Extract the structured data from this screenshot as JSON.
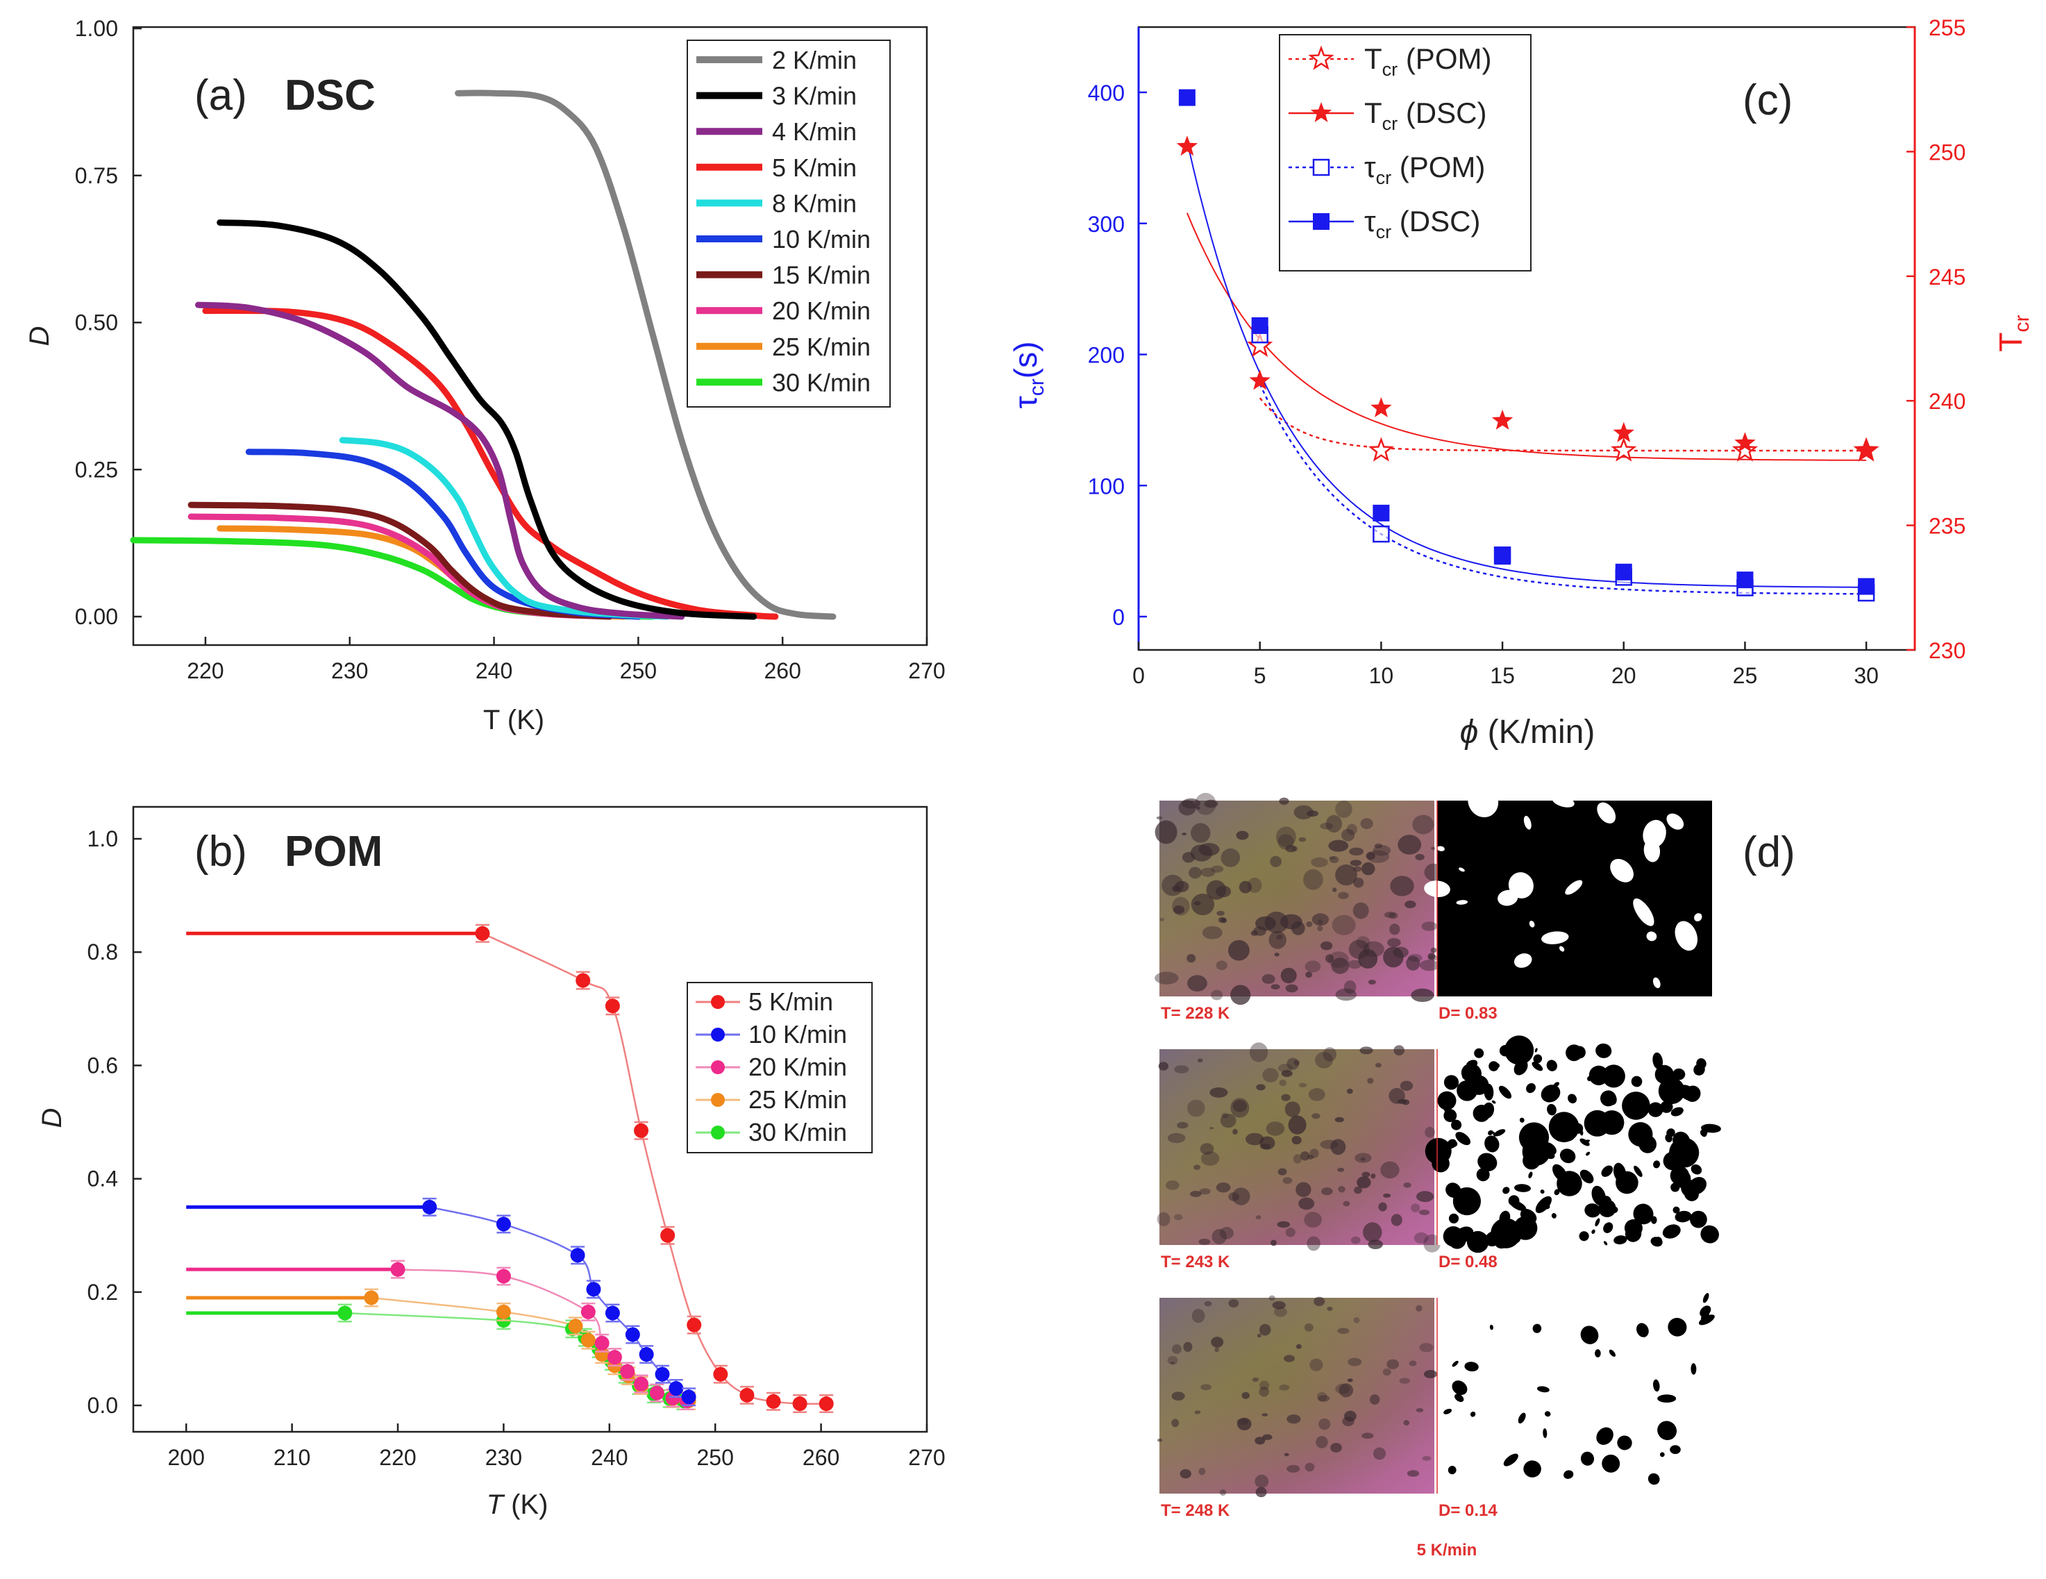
{
  "chart_data": [
    {
      "id": "a",
      "type": "line",
      "panel_label": "(a)",
      "title": "DSC",
      "xlabel": "T (K)",
      "ylabel": "D",
      "xlim": [
        215,
        270
      ],
      "ylim": [
        0,
        1.0
      ],
      "xticks": [
        220,
        230,
        240,
        250,
        260,
        270
      ],
      "yticks": [
        0.0,
        0.25,
        0.5,
        0.75,
        1.0
      ],
      "xtick_labels": [
        "220",
        "230",
        "240",
        "250",
        "260",
        "270"
      ],
      "ytick_labels": [
        "0.00",
        "0.25",
        "0.50",
        "0.75",
        "1.00"
      ],
      "legend_position": "top-right",
      "series": [
        {
          "name": "2 K/min",
          "color": "#808080",
          "x": [
            237.5,
            240,
            243,
            245,
            247,
            249,
            251,
            253,
            255,
            257,
            259,
            261,
            263.5
          ],
          "y": [
            0.89,
            0.89,
            0.885,
            0.86,
            0.8,
            0.66,
            0.48,
            0.3,
            0.16,
            0.07,
            0.02,
            0.004,
            0.0
          ]
        },
        {
          "name": "3 K/min",
          "color": "#000000",
          "x": [
            221,
            225,
            229,
            232,
            235,
            237,
            239,
            240.5,
            241.5,
            242.5,
            244,
            246,
            249,
            253,
            258
          ],
          "y": [
            0.67,
            0.665,
            0.64,
            0.59,
            0.51,
            0.44,
            0.37,
            0.33,
            0.28,
            0.2,
            0.11,
            0.06,
            0.025,
            0.006,
            0.0
          ]
        },
        {
          "name": "4 K/min",
          "color": "#8b2a8b",
          "x": [
            219.5,
            223,
            227,
            231,
            234,
            237,
            239,
            240.3,
            241.2,
            242,
            243.5,
            246,
            249,
            253
          ],
          "y": [
            0.53,
            0.525,
            0.5,
            0.45,
            0.39,
            0.35,
            0.31,
            0.25,
            0.16,
            0.09,
            0.04,
            0.015,
            0.005,
            0.0
          ]
        },
        {
          "name": "5 K/min",
          "color": "#f02020",
          "x": [
            220,
            226,
            230,
            233,
            236,
            238,
            240,
            242,
            244,
            246,
            250,
            254,
            258,
            259.5
          ],
          "y": [
            0.52,
            0.518,
            0.5,
            0.46,
            0.4,
            0.33,
            0.24,
            0.16,
            0.12,
            0.09,
            0.04,
            0.012,
            0.002,
            0.0
          ]
        },
        {
          "name": "8 K/min",
          "color": "#22dddd",
          "x": [
            229.5,
            232,
            234,
            236,
            237.5,
            238.5,
            239.5,
            240.5,
            241.5,
            243,
            246,
            249,
            252
          ],
          "y": [
            0.3,
            0.295,
            0.28,
            0.245,
            0.2,
            0.15,
            0.1,
            0.065,
            0.04,
            0.02,
            0.008,
            0.003,
            0.0
          ]
        },
        {
          "name": "10 K/min",
          "color": "#1a3be0",
          "x": [
            223,
            227,
            231,
            234,
            236.5,
            238,
            239.5,
            241,
            243,
            246,
            250
          ],
          "y": [
            0.28,
            0.278,
            0.265,
            0.23,
            0.17,
            0.11,
            0.06,
            0.035,
            0.018,
            0.006,
            0.0
          ]
        },
        {
          "name": "15 K/min",
          "color": "#7a1a1a",
          "x": [
            219,
            225,
            230,
            233,
            235.5,
            237,
            238.3,
            239.5,
            241,
            244,
            248
          ],
          "y": [
            0.19,
            0.188,
            0.18,
            0.16,
            0.12,
            0.08,
            0.05,
            0.03,
            0.015,
            0.005,
            0.0
          ]
        },
        {
          "name": "20 K/min",
          "color": "#e6338f",
          "x": [
            219,
            225,
            230,
            233,
            235.5,
            237,
            238.3,
            239.5,
            241,
            244,
            248
          ],
          "y": [
            0.17,
            0.168,
            0.16,
            0.14,
            0.105,
            0.07,
            0.043,
            0.026,
            0.013,
            0.004,
            0.0
          ]
        },
        {
          "name": "25 K/min",
          "color": "#f28a1a",
          "x": [
            221,
            226,
            231,
            234,
            236,
            237.5,
            238.7,
            240,
            242,
            245,
            249
          ],
          "y": [
            0.15,
            0.148,
            0.14,
            0.12,
            0.09,
            0.06,
            0.037,
            0.022,
            0.01,
            0.003,
            0.0
          ]
        },
        {
          "name": "30 K/min",
          "color": "#22e022",
          "x": [
            215,
            222,
            228,
            232,
            235,
            237,
            238.5,
            240,
            242,
            246,
            251
          ],
          "y": [
            0.13,
            0.128,
            0.122,
            0.105,
            0.08,
            0.052,
            0.03,
            0.017,
            0.008,
            0.002,
            0.0
          ]
        }
      ]
    },
    {
      "id": "b",
      "type": "scatter",
      "panel_label": "(b)",
      "title": "POM",
      "xlabel": "T (K)",
      "xlabel_italic": "T",
      "xlabel_unit": " (K)",
      "ylabel": "D",
      "xlim": [
        195,
        270
      ],
      "ylim": [
        -0.05,
        1.05
      ],
      "xticks": [
        200,
        210,
        220,
        230,
        240,
        250,
        260,
        270
      ],
      "yticks": [
        0.0,
        0.2,
        0.4,
        0.6,
        0.8,
        1.0
      ],
      "xtick_labels": [
        "200",
        "210",
        "220",
        "230",
        "240",
        "250",
        "260",
        "270"
      ],
      "ytick_labels": [
        "0.0",
        "0.2",
        "0.4",
        "0.6",
        "0.8",
        "1.0"
      ],
      "legend_position": "center-right",
      "series": [
        {
          "name": "5 K/min",
          "color": "#ee1c1c",
          "line_color": "#f08080",
          "plateau_from": 200,
          "x": [
            228,
            237.5,
            240.3,
            243,
            245.5,
            248,
            250.5,
            253,
            255.5,
            258,
            260.5
          ],
          "y": [
            0.833,
            0.75,
            0.705,
            0.485,
            0.3,
            0.142,
            0.055,
            0.018,
            0.007,
            0.003,
            0.003
          ],
          "err": [
            0.015,
            0.015,
            0.015,
            0.015,
            0.015,
            0.015,
            0.015,
            0.015,
            0.015,
            0.015,
            0.015
          ]
        },
        {
          "name": "10 K/min",
          "color": "#1010ee",
          "line_color": "#7070f0",
          "plateau_from": 200,
          "x": [
            223,
            230,
            237,
            238.5,
            240.3,
            242.2,
            243.5,
            245,
            246.3,
            247.5
          ],
          "y": [
            0.35,
            0.32,
            0.265,
            0.205,
            0.163,
            0.125,
            0.09,
            0.055,
            0.03,
            0.015
          ],
          "err": [
            0.015,
            0.015,
            0.015,
            0.015,
            0.015,
            0.015,
            0.015,
            0.015,
            0.015,
            0.015
          ]
        },
        {
          "name": "20 K/min",
          "color": "#ee2a8a",
          "line_color": "#f08ab8",
          "plateau_from": 200,
          "x": [
            220,
            230,
            238,
            239.3,
            240.5,
            241.7,
            243,
            244.5,
            246,
            247.3
          ],
          "y": [
            0.24,
            0.228,
            0.165,
            0.11,
            0.085,
            0.06,
            0.038,
            0.022,
            0.013,
            0.008
          ],
          "err": [
            0.015,
            0.015,
            0.015,
            0.015,
            0.015,
            0.015,
            0.015,
            0.015,
            0.015,
            0.015
          ]
        },
        {
          "name": "25 K/min",
          "color": "#f0881a",
          "line_color": "#f4bc80",
          "plateau_from": 200,
          "x": [
            217.5,
            230,
            236.8,
            238,
            239.3,
            240.5,
            241.8,
            243,
            244.5,
            246,
            247.5
          ],
          "y": [
            0.19,
            0.165,
            0.14,
            0.115,
            0.09,
            0.07,
            0.052,
            0.035,
            0.022,
            0.012,
            0.008
          ],
          "err": [
            0.015,
            0.015,
            0.015,
            0.015,
            0.015,
            0.015,
            0.015,
            0.015,
            0.015,
            0.015,
            0.015
          ]
        },
        {
          "name": "30 K/min",
          "color": "#22dd22",
          "line_color": "#80e880",
          "plateau_from": 200,
          "x": [
            215,
            230,
            236.5,
            237.7,
            239,
            240.2,
            241.5,
            242.8,
            244.2,
            245.7,
            247
          ],
          "y": [
            0.163,
            0.15,
            0.135,
            0.12,
            0.1,
            0.078,
            0.055,
            0.035,
            0.02,
            0.012,
            0.008
          ],
          "err": [
            0.015,
            0.015,
            0.015,
            0.015,
            0.015,
            0.015,
            0.015,
            0.015,
            0.015,
            0.015,
            0.015
          ]
        }
      ]
    },
    {
      "id": "c",
      "type": "scatter",
      "panel_label": "(c)",
      "xlabel": "ϕ (K/min)",
      "xlabel_italic": "ϕ",
      "xlabel_unit": " (K/min)",
      "ylabel_left": "τcr(s)",
      "ylabel_right": "Tcr",
      "xlim": [
        0,
        32
      ],
      "ylim_left": [
        -25,
        450
      ],
      "ylim_right": [
        230,
        255
      ],
      "xticks": [
        0,
        5,
        10,
        15,
        20,
        25,
        30
      ],
      "yticks_left": [
        0,
        100,
        200,
        300,
        400
      ],
      "yticks_right": [
        230,
        235,
        240,
        245,
        250,
        255
      ],
      "xtick_labels": [
        "0",
        "5",
        "10",
        "15",
        "20",
        "25",
        "30"
      ],
      "ytick_labels_left": [
        "0",
        "100",
        "200",
        "300",
        "400"
      ],
      "ytick_labels_right": [
        "230",
        "235",
        "240",
        "245",
        "250",
        "255"
      ],
      "left_axis_color": "#1a1aee",
      "right_axis_color": "#ee1c1c",
      "legend_position": "top-left",
      "series": [
        {
          "name": "Tcr (POM)",
          "label_main": "T",
          "label_sub": "cr",
          "label_rest": " (POM)",
          "axis": "right",
          "marker": "star-open",
          "line": "dotted",
          "color": "#ee1c1c",
          "x": [
            5,
            10,
            20,
            25,
            30
          ],
          "y": [
            242.2,
            238.0,
            238.0,
            238.0,
            238.0
          ]
        },
        {
          "name": "Tcr (DSC)",
          "label_main": "T",
          "label_sub": "cr",
          "label_rest": " (DSC)",
          "axis": "right",
          "marker": "star-filled",
          "line": "solid",
          "color": "#ee1c1c",
          "x": [
            2,
            5,
            10,
            15,
            20,
            25,
            30
          ],
          "y": [
            250.2,
            240.8,
            239.7,
            239.2,
            238.7,
            238.3,
            238.0
          ]
        },
        {
          "name": "τcr (POM)",
          "label_main": "τ",
          "label_sub": "cr",
          "label_rest": " (POM)",
          "axis": "left",
          "marker": "square-open",
          "line": "dotted",
          "color": "#1a1aee",
          "x": [
            5,
            10,
            15,
            20,
            25,
            30
          ],
          "y": [
            215,
            63,
            47,
            30,
            22,
            18
          ]
        },
        {
          "name": "τcr (DSC)",
          "label_main": "τ",
          "label_sub": "cr",
          "label_rest": " (DSC)",
          "axis": "left",
          "marker": "square-filled",
          "line": "solid",
          "color": "#1a1aee",
          "x": [
            2,
            5,
            10,
            15,
            20,
            25,
            30
          ],
          "y": [
            396,
            222,
            79,
            46,
            34,
            28,
            23
          ]
        }
      ]
    }
  ],
  "panel_d": {
    "label": "(d)",
    "images": [
      {
        "t_label": "T= 228 K",
        "d_label": "D= 0.83",
        "seed": 1,
        "black_fraction": 0.83
      },
      {
        "t_label": "T= 243 K",
        "d_label": "D= 0.48",
        "seed": 2,
        "black_fraction": 0.48
      },
      {
        "t_label": "T= 248 K",
        "d_label": "D= 0.14",
        "seed": 3,
        "black_fraction": 0.14
      }
    ],
    "rate_label": "5 K/min"
  }
}
